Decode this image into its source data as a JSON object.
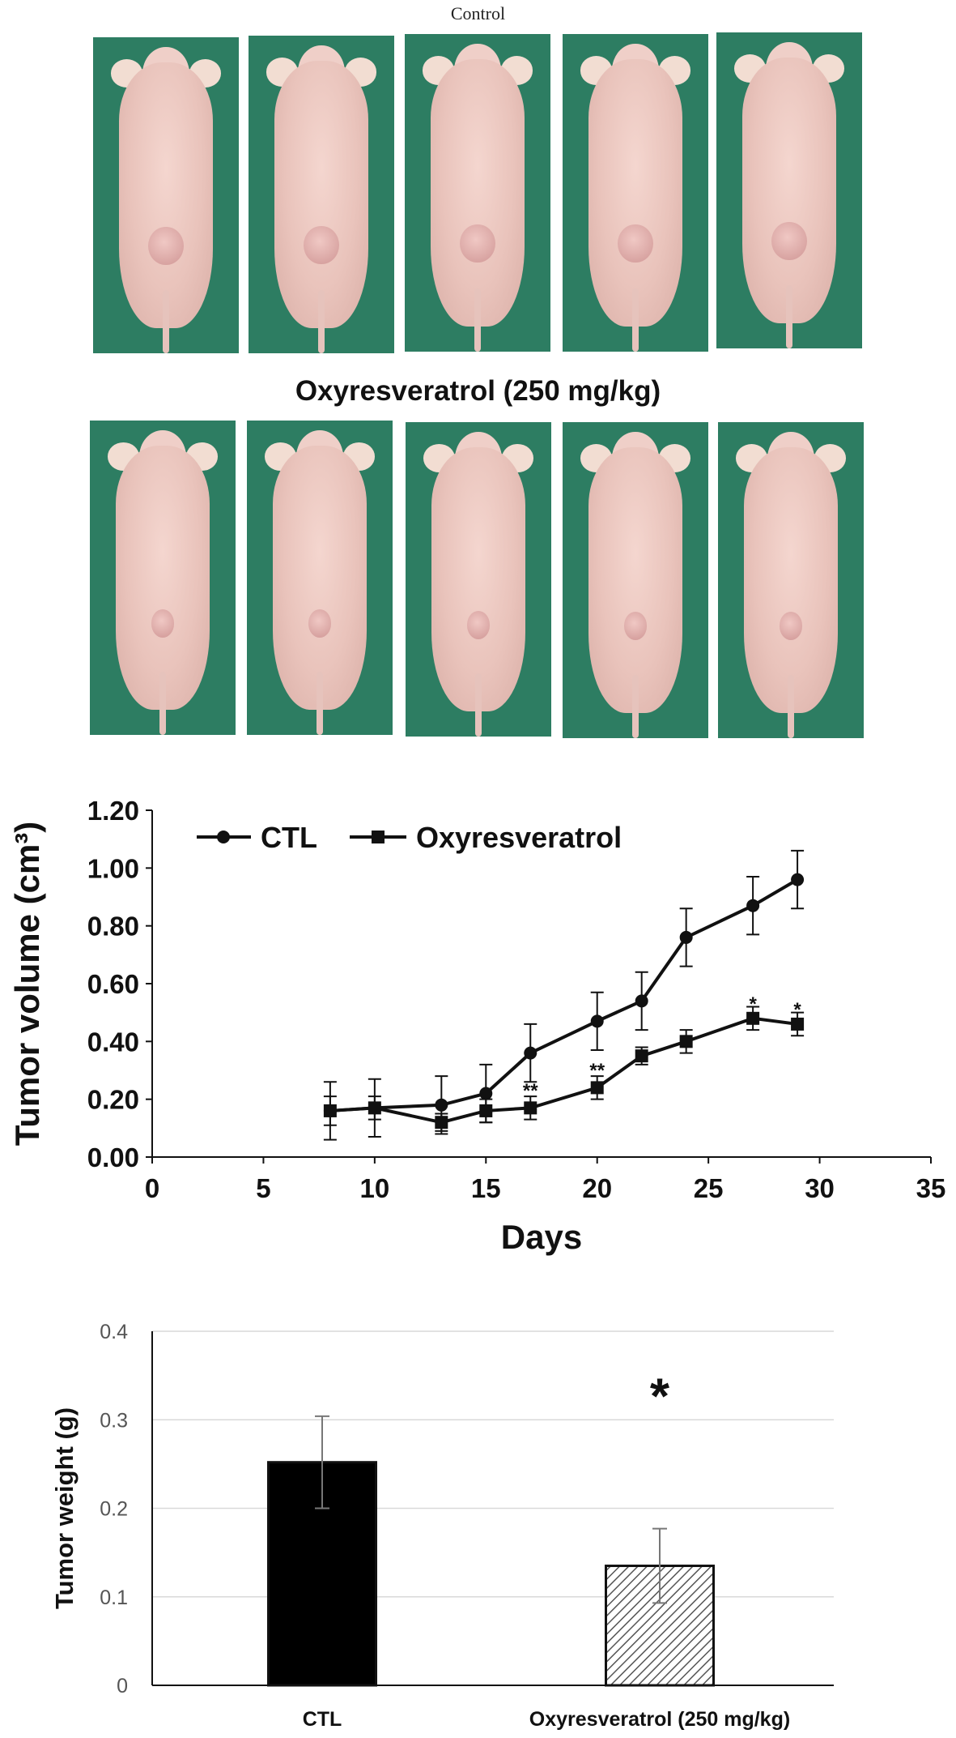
{
  "panel_a": {
    "control_label": "Control",
    "treated_label": "Oxyresveratrol (250 mg/kg)"
  },
  "chart_data": [
    {
      "type": "line",
      "title": "",
      "xlabel": "Days",
      "ylabel": "Tumor volume (cm³)",
      "xlim": [
        0,
        35
      ],
      "ylim": [
        0,
        1.2
      ],
      "x_ticks": [
        "0",
        "5",
        "10",
        "15",
        "20",
        "25",
        "30",
        "35"
      ],
      "y_ticks": [
        "0.00",
        "0.20",
        "0.40",
        "0.60",
        "0.80",
        "1.00",
        "1.20"
      ],
      "legend": "top-left",
      "grid": false,
      "series": [
        {
          "name": "CTL",
          "marker": "circle",
          "x": [
            8,
            10,
            13,
            15,
            17,
            20,
            22,
            24,
            27,
            29
          ],
          "y": [
            0.16,
            0.17,
            0.18,
            0.22,
            0.36,
            0.47,
            0.54,
            0.76,
            0.87,
            0.96
          ],
          "err": [
            0.1,
            0.1,
            0.1,
            0.1,
            0.1,
            0.1,
            0.1,
            0.1,
            0.1,
            0.1
          ]
        },
        {
          "name": "Oxyresveratrol",
          "marker": "square",
          "x": [
            8,
            10,
            13,
            15,
            17,
            20,
            22,
            24,
            27,
            29
          ],
          "y": [
            0.16,
            0.17,
            0.12,
            0.16,
            0.17,
            0.24,
            0.35,
            0.4,
            0.48,
            0.46
          ],
          "err": [
            0.05,
            0.04,
            0.03,
            0.04,
            0.04,
            0.04,
            0.03,
            0.04,
            0.04,
            0.04
          ]
        }
      ],
      "annotations": [
        {
          "x": 17,
          "y": 0.23,
          "text": "**"
        },
        {
          "x": 20,
          "y": 0.3,
          "text": "**"
        },
        {
          "x": 27,
          "y": 0.53,
          "text": "*"
        },
        {
          "x": 29,
          "y": 0.51,
          "text": "*"
        }
      ]
    },
    {
      "type": "bar",
      "title": "",
      "xlabel": "",
      "ylabel": "Tumor weight (g)",
      "ylim": [
        0,
        0.4
      ],
      "y_ticks": [
        "0",
        "0.1",
        "0.2",
        "0.3",
        "0.4"
      ],
      "grid": true,
      "categories": [
        "CTL",
        "Oxyresveratrol (250 mg/kg)"
      ],
      "values": [
        0.252,
        0.135
      ],
      "err": [
        0.052,
        0.042
      ],
      "fills": [
        "#000000",
        "hatched"
      ],
      "annotations": [
        {
          "category": 1,
          "y": 0.33,
          "text": "*"
        }
      ]
    }
  ]
}
